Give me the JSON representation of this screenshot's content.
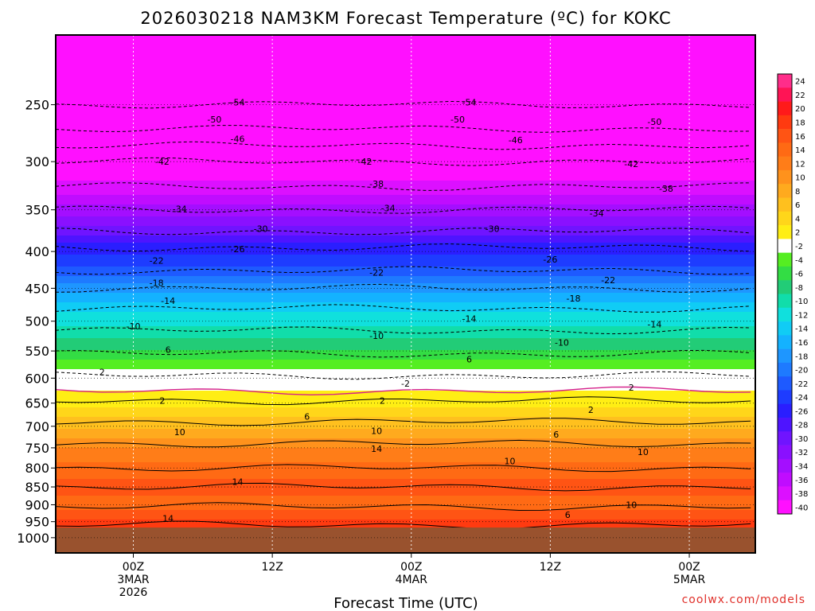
{
  "chart_data": {
    "type": "heatmap",
    "title": "2026030218 NAM3KM Forecast Temperature (ºC) for KOKC",
    "xlabel": "Forecast Time (UTC)",
    "ylabel": "",
    "credit": "coolwx.com/models",
    "x_range_hours": [
      -6.7,
      53.7
    ],
    "y_range_hpa": [
      200,
      1050
    ],
    "y_scale": "log",
    "y_ticks": [
      250,
      300,
      350,
      400,
      450,
      500,
      550,
      600,
      650,
      700,
      750,
      800,
      850,
      900,
      950,
      1000
    ],
    "x_ticks": [
      {
        "hours": 0,
        "lines": [
          "00Z",
          "3MAR",
          "2026"
        ]
      },
      {
        "hours": 12,
        "lines": [
          "12Z"
        ]
      },
      {
        "hours": 24,
        "lines": [
          "00Z",
          "4MAR"
        ]
      },
      {
        "hours": 36,
        "lines": [
          "12Z"
        ]
      },
      {
        "hours": 48,
        "lines": [
          "00Z",
          "5MAR"
        ]
      }
    ],
    "grid": true,
    "ground_pressure_hpa": 968,
    "colorbar": {
      "placement": "right",
      "levels": [
        "24",
        "22",
        "20",
        "18",
        "16",
        "14",
        "12",
        "10",
        "8",
        "6",
        "4",
        "2",
        "-2",
        "-4",
        "-6",
        "-8",
        "-10",
        "-12",
        "-14",
        "-16",
        "-18",
        "-20",
        "-22",
        "-24",
        "-26",
        "-28",
        "-30",
        "-32",
        "-34",
        "-36",
        "-38",
        "-40"
      ],
      "colors": [
        "#ff2d8a",
        "#ff1455",
        "#ff1a1a",
        "#ff3a10",
        "#ff5414",
        "#ff6a14",
        "#ff7d18",
        "#ff921c",
        "#ffaa1e",
        "#ffc01e",
        "#ffd61a",
        "#ffee14",
        "#ffffff",
        "#55ee22",
        "#33dd44",
        "#22cc77",
        "#11ddaa",
        "#10e0dd",
        "#10ccf5",
        "#14b2ff",
        "#1e96ff",
        "#1e7aff",
        "#1e5aff",
        "#1e3cff",
        "#2a1eff",
        "#4e14ff",
        "#7014ff",
        "#8a10ff",
        "#a40eff",
        "#c00cff",
        "#dc10ff",
        "#ff10ff"
      ]
    },
    "temperature_profile": [
      {
        "p": 200,
        "t": -60
      },
      {
        "p": 250,
        "t": -54
      },
      {
        "p": 270,
        "t": -50
      },
      {
        "p": 285,
        "t": -46
      },
      {
        "p": 300,
        "t": -42
      },
      {
        "p": 325,
        "t": -38
      },
      {
        "p": 350,
        "t": -34
      },
      {
        "p": 375,
        "t": -30
      },
      {
        "p": 395,
        "t": -26
      },
      {
        "p": 425,
        "t": -22
      },
      {
        "p": 450,
        "t": -18
      },
      {
        "p": 480,
        "t": -14
      },
      {
        "p": 515,
        "t": -10
      },
      {
        "p": 555,
        "t": -6
      },
      {
        "p": 595,
        "t": -2
      },
      {
        "p": 625,
        "t": 0
      },
      {
        "p": 645,
        "t": 2
      },
      {
        "p": 690,
        "t": 6
      },
      {
        "p": 740,
        "t": 10
      },
      {
        "p": 800,
        "t": 14
      },
      {
        "p": 850,
        "t": 16
      },
      {
        "p": 905,
        "t": 14
      },
      {
        "p": 960,
        "t": 18
      }
    ],
    "contour_labels": [
      {
        "text": "-54",
        "x": 9,
        "p": 248
      },
      {
        "text": "-54",
        "x": 29,
        "p": 248
      },
      {
        "text": "-50",
        "x": 7,
        "p": 262
      },
      {
        "text": "-50",
        "x": 28,
        "p": 262
      },
      {
        "text": "-50",
        "x": 45,
        "p": 264
      },
      {
        "text": "-46",
        "x": 9,
        "p": 279
      },
      {
        "text": "-46",
        "x": 33,
        "p": 280
      },
      {
        "text": "-42",
        "x": 2.5,
        "p": 300
      },
      {
        "text": "-42",
        "x": 20,
        "p": 300
      },
      {
        "text": "-42",
        "x": 43,
        "p": 302
      },
      {
        "text": "-38",
        "x": 21,
        "p": 322
      },
      {
        "text": "-38",
        "x": 46,
        "p": 327
      },
      {
        "text": "-34",
        "x": 4,
        "p": 349
      },
      {
        "text": "-34",
        "x": 22,
        "p": 348
      },
      {
        "text": "-34",
        "x": 40,
        "p": 354
      },
      {
        "text": "-30",
        "x": 11,
        "p": 372
      },
      {
        "text": "-30",
        "x": 31,
        "p": 372
      },
      {
        "text": "-26",
        "x": 9,
        "p": 397
      },
      {
        "text": "-26",
        "x": 36,
        "p": 410
      },
      {
        "text": "-22",
        "x": 2,
        "p": 412
      },
      {
        "text": "-22",
        "x": 21,
        "p": 428
      },
      {
        "text": "-22",
        "x": 41,
        "p": 438
      },
      {
        "text": "-18",
        "x": 2,
        "p": 442
      },
      {
        "text": "-18",
        "x": 38,
        "p": 465
      },
      {
        "text": "-14",
        "x": 3,
        "p": 468
      },
      {
        "text": "-14",
        "x": 29,
        "p": 496
      },
      {
        "text": "-14",
        "x": 45,
        "p": 505
      },
      {
        "text": "-10",
        "x": 0,
        "p": 508
      },
      {
        "text": "-10",
        "x": 21,
        "p": 524
      },
      {
        "text": "-10",
        "x": 37,
        "p": 535
      },
      {
        "text": "6",
        "x": 3,
        "p": 548
      },
      {
        "text": "6",
        "x": 29,
        "p": 565
      },
      {
        "text": "2",
        "x": -2.7,
        "p": 588
      },
      {
        "text": "-2",
        "x": 23.5,
        "p": 610
      },
      {
        "text": "2",
        "x": 2.5,
        "p": 645
      },
      {
        "text": "2",
        "x": 21.5,
        "p": 645
      },
      {
        "text": "2",
        "x": 43,
        "p": 618
      },
      {
        "text": "2",
        "x": 39.5,
        "p": 664
      },
      {
        "text": "6",
        "x": 15,
        "p": 678
      },
      {
        "text": "6",
        "x": 36.5,
        "p": 718
      },
      {
        "text": "10",
        "x": 4,
        "p": 713
      },
      {
        "text": "10",
        "x": 21,
        "p": 710
      },
      {
        "text": "10",
        "x": 44,
        "p": 760
      },
      {
        "text": "10",
        "x": 32.5,
        "p": 782
      },
      {
        "text": "14",
        "x": 21,
        "p": 752
      },
      {
        "text": "14",
        "x": 9,
        "p": 836
      },
      {
        "text": "14",
        "x": 3,
        "p": 940
      },
      {
        "text": "10",
        "x": 43,
        "p": 900
      },
      {
        "text": "6",
        "x": 37.5,
        "p": 929
      }
    ]
  }
}
